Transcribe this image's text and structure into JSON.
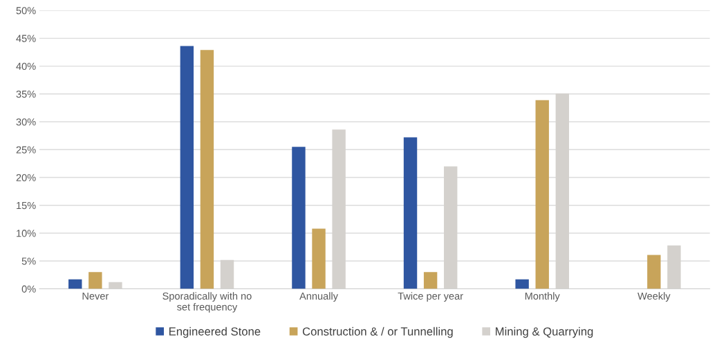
{
  "chart_data": {
    "type": "bar",
    "categories": [
      "Never",
      "Sporadically with no\nset frequency",
      "Annually",
      "Twice per year",
      "Monthly",
      "Weekly"
    ],
    "series": [
      {
        "name": "Engineered Stone",
        "color": "#2f56a1",
        "values": [
          1.7,
          43.6,
          25.5,
          27.2,
          1.7,
          0
        ]
      },
      {
        "name": "Construction & / or Tunnelling",
        "color": "#c8a45a",
        "values": [
          3.0,
          42.9,
          10.8,
          3.0,
          33.9,
          6.1
        ]
      },
      {
        "name": "Mining & Quarrying",
        "color": "#d4d1cd",
        "values": [
          1.2,
          5.2,
          28.6,
          22.0,
          35.1,
          7.8
        ]
      }
    ],
    "ylim": [
      0,
      50
    ],
    "yticks": [
      {
        "value": 0,
        "label": "0%"
      },
      {
        "value": 5,
        "label": "5%"
      },
      {
        "value": 10,
        "label": "10%"
      },
      {
        "value": 15,
        "label": "15%"
      },
      {
        "value": 20,
        "label": "20%"
      },
      {
        "value": 25,
        "label": "25%"
      },
      {
        "value": 30,
        "label": "30%"
      },
      {
        "value": 35,
        "label": "35%"
      },
      {
        "value": 40,
        "label": "40%"
      },
      {
        "value": 45,
        "label": "45%"
      },
      {
        "value": 50,
        "label": "50%"
      }
    ],
    "grid": "y",
    "legend": "bottom"
  }
}
